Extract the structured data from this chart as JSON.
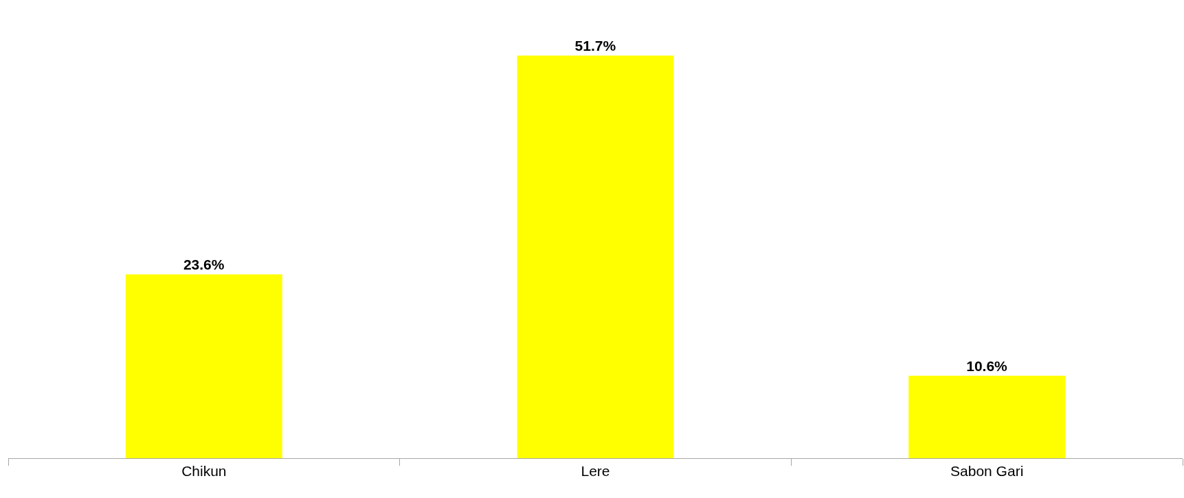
{
  "chart_data": {
    "type": "bar",
    "categories": [
      "Chikun",
      "Lere",
      "Sabon Gari"
    ],
    "values": [
      23.6,
      51.7,
      10.6
    ],
    "value_labels": [
      "23.6%",
      "51.7%",
      "10.6%"
    ],
    "color": "#ffff00",
    "grid": false,
    "legend": false
  }
}
